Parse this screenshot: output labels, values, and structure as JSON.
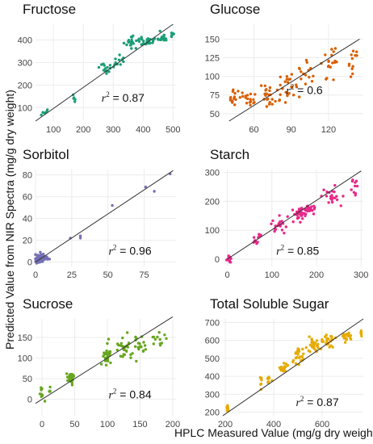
{
  "figure": {
    "ylabel": "Predicted Value from NIR Spectra (mg/g dry weight)",
    "xlabel": "HPLC Measured Value (mg/g dry weight)"
  },
  "chart_data": [
    {
      "type": "scatter",
      "title": "Fructose",
      "color": "#1b9e77",
      "xlim": [
        40,
        510
      ],
      "ylim": [
        40,
        470
      ],
      "xticks": [
        100,
        200,
        300,
        400,
        500
      ],
      "yticks": [
        100,
        200,
        300,
        400
      ],
      "fit": {
        "x": [
          40,
          500
        ],
        "y": [
          40,
          470
        ]
      },
      "r2": "0.87",
      "clusters": [
        {
          "x": 70,
          "y": 80,
          "n": 8,
          "sx": 12,
          "sy": 15
        },
        {
          "x": 170,
          "y": 150,
          "n": 5,
          "sx": 5,
          "sy": 20
        },
        {
          "x": 270,
          "y": 270,
          "n": 14,
          "sx": 25,
          "sy": 25
        },
        {
          "x": 320,
          "y": 310,
          "n": 10,
          "sx": 15,
          "sy": 25
        },
        {
          "x": 360,
          "y": 390,
          "n": 20,
          "sx": 20,
          "sy": 20
        },
        {
          "x": 410,
          "y": 390,
          "n": 25,
          "sx": 25,
          "sy": 20
        },
        {
          "x": 460,
          "y": 410,
          "n": 14,
          "sx": 25,
          "sy": 18
        },
        {
          "x": 495,
          "y": 425,
          "n": 5,
          "sx": 5,
          "sy": 10
        }
      ]
    },
    {
      "type": "scatter",
      "title": "Glucose",
      "color": "#d95f02",
      "xlim": [
        35,
        148
      ],
      "ylim": [
        40,
        170
      ],
      "xticks": [
        60,
        90,
        120
      ],
      "yticks": [
        50,
        75,
        100,
        125,
        150
      ],
      "fit": {
        "x": [
          40,
          145
        ],
        "y": [
          40,
          150
        ]
      },
      "r2": "0.6",
      "clusters": [
        {
          "x": 43,
          "y": 72,
          "n": 14,
          "sx": 5,
          "sy": 12
        },
        {
          "x": 58,
          "y": 70,
          "n": 18,
          "sx": 6,
          "sy": 10
        },
        {
          "x": 72,
          "y": 75,
          "n": 22,
          "sx": 6,
          "sy": 14
        },
        {
          "x": 87,
          "y": 88,
          "n": 22,
          "sx": 6,
          "sy": 16
        },
        {
          "x": 102,
          "y": 105,
          "n": 14,
          "sx": 5,
          "sy": 18
        },
        {
          "x": 122,
          "y": 118,
          "n": 18,
          "sx": 6,
          "sy": 20
        },
        {
          "x": 140,
          "y": 125,
          "n": 12,
          "sx": 4,
          "sy": 18
        }
      ]
    },
    {
      "type": "scatter",
      "title": "Sorbitol",
      "color": "#7570b3",
      "xlim": [
        0,
        97
      ],
      "ylim": [
        -4,
        85
      ],
      "xticks": [
        0,
        25,
        50,
        75
      ],
      "yticks": [
        0,
        20,
        40,
        60,
        80
      ],
      "fit": {
        "x": [
          0,
          95
        ],
        "y": [
          0,
          84
        ]
      },
      "r2": "0.96",
      "clusters": [
        {
          "x": 3,
          "y": 3,
          "n": 90,
          "sx": 2.5,
          "sy": 3.2
        },
        {
          "x": 8,
          "y": 4,
          "n": 10,
          "sx": 3,
          "sy": 2
        }
      ],
      "points": [
        {
          "x": 24,
          "y": 22
        },
        {
          "x": 31,
          "y": 24
        },
        {
          "x": 31,
          "y": 22
        },
        {
          "x": 53,
          "y": 52
        },
        {
          "x": 76,
          "y": 69
        },
        {
          "x": 82,
          "y": 65
        },
        {
          "x": 93,
          "y": 81
        }
      ]
    },
    {
      "type": "scatter",
      "title": "Starch",
      "color": "#e7298a",
      "xlim": [
        -10,
        305
      ],
      "ylim": [
        -25,
        310
      ],
      "xticks": [
        0,
        100,
        200,
        300
      ],
      "yticks": [
        0,
        100,
        200,
        300
      ],
      "fit": {
        "x": [
          0,
          300
        ],
        "y": [
          0,
          305
        ]
      },
      "r2": "0.85",
      "clusters": [
        {
          "x": 3,
          "y": 0,
          "n": 10,
          "sx": 4,
          "sy": 14
        },
        {
          "x": 65,
          "y": 75,
          "n": 12,
          "sx": 12,
          "sy": 20
        },
        {
          "x": 120,
          "y": 125,
          "n": 20,
          "sx": 20,
          "sy": 22
        },
        {
          "x": 165,
          "y": 160,
          "n": 35,
          "sx": 15,
          "sy": 20
        },
        {
          "x": 185,
          "y": 175,
          "n": 20,
          "sx": 10,
          "sy": 15
        },
        {
          "x": 235,
          "y": 225,
          "n": 20,
          "sx": 15,
          "sy": 25
        },
        {
          "x": 285,
          "y": 255,
          "n": 10,
          "sx": 10,
          "sy": 25
        }
      ]
    },
    {
      "type": "scatter",
      "title": "Sucrose",
      "color": "#66a61e",
      "xlim": [
        -10,
        205
      ],
      "ylim": [
        -40,
        195
      ],
      "xticks": [
        0,
        50,
        100,
        150,
        200
      ],
      "yticks": [
        0,
        50,
        100,
        150
      ],
      "fit": {
        "x": [
          -10,
          200
        ],
        "y": [
          -10,
          200
        ]
      },
      "r2": "0.84",
      "clusters": [
        {
          "x": 0,
          "y": 15,
          "n": 10,
          "sx": 3,
          "sy": 20
        },
        {
          "x": 12,
          "y": 22,
          "n": 4,
          "sx": 3,
          "sy": 8
        },
        {
          "x": 45,
          "y": 50,
          "n": 25,
          "sx": 7,
          "sy": 12
        },
        {
          "x": 100,
          "y": 110,
          "n": 25,
          "sx": 6,
          "sy": 22
        },
        {
          "x": 125,
          "y": 125,
          "n": 25,
          "sx": 10,
          "sy": 22
        },
        {
          "x": 150,
          "y": 130,
          "n": 20,
          "sx": 8,
          "sy": 20
        },
        {
          "x": 180,
          "y": 145,
          "n": 12,
          "sx": 10,
          "sy": 15
        }
      ]
    },
    {
      "type": "scatter",
      "title": "Total Soluble Sugar",
      "color": "#e6ab02",
      "xlim": [
        190,
        770
      ],
      "ylim": [
        180,
        720
      ],
      "xticks": [
        200,
        400,
        600
      ],
      "yticks": [
        200,
        300,
        400,
        500,
        600,
        700
      ],
      "fit": {
        "x": [
          190,
          770
        ],
        "y": [
          180,
          720
        ]
      },
      "r2": "0.87",
      "clusters": [
        {
          "x": 210,
          "y": 220,
          "n": 12,
          "sx": 5,
          "sy": 20
        },
        {
          "x": 345,
          "y": 370,
          "n": 8,
          "sx": 5,
          "sy": 40
        },
        {
          "x": 380,
          "y": 385,
          "n": 8,
          "sx": 10,
          "sy": 20
        },
        {
          "x": 440,
          "y": 450,
          "n": 18,
          "sx": 15,
          "sy": 25
        },
        {
          "x": 500,
          "y": 520,
          "n": 25,
          "sx": 20,
          "sy": 40
        },
        {
          "x": 560,
          "y": 580,
          "n": 30,
          "sx": 25,
          "sy": 40
        },
        {
          "x": 620,
          "y": 600,
          "n": 25,
          "sx": 25,
          "sy": 35
        },
        {
          "x": 700,
          "y": 620,
          "n": 18,
          "sx": 30,
          "sy": 30
        },
        {
          "x": 760,
          "y": 640,
          "n": 5,
          "sx": 5,
          "sy": 15
        }
      ]
    }
  ]
}
